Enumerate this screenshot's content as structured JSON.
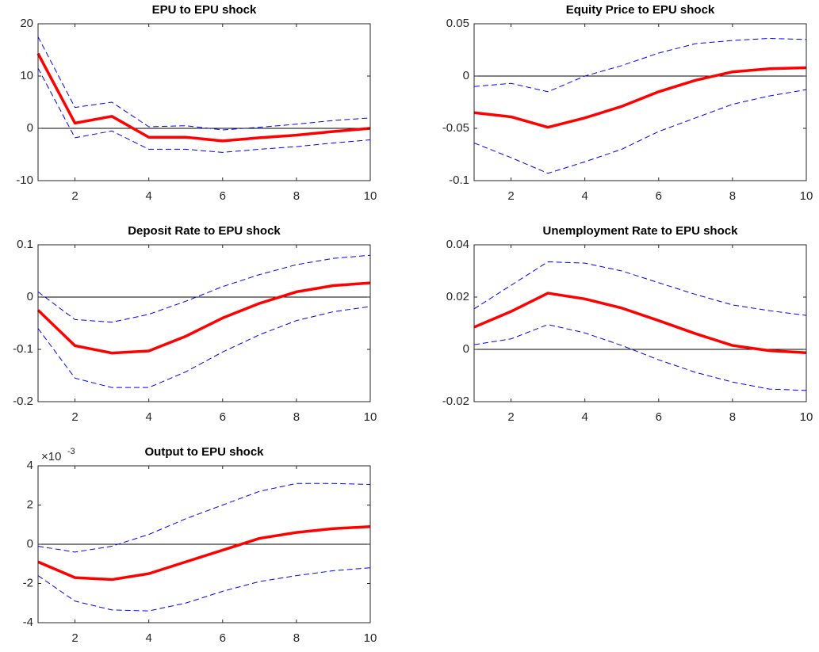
{
  "chart_data": [
    {
      "type": "line",
      "title": "EPU to EPU shock",
      "x": [
        1,
        2,
        3,
        4,
        5,
        6,
        7,
        8,
        9,
        10
      ],
      "xlim": [
        1,
        10
      ],
      "xticks": [
        2,
        4,
        6,
        8,
        10
      ],
      "ylim": [
        -10,
        20
      ],
      "yticks": [
        -10,
        0,
        10,
        20
      ],
      "zero_line": true,
      "series": [
        {
          "color": "#0000ff",
          "dashed": true,
          "values": [
            17.5,
            4,
            5,
            0.3,
            0.5,
            -0.3,
            0.2,
            0.8,
            1.5,
            2
          ]
        },
        {
          "color": "#0000ff",
          "dashed": true,
          "values": [
            11.5,
            -1.8,
            -0.5,
            -4,
            -4,
            -4.6,
            -4,
            -3.5,
            -2.8,
            -2.2
          ]
        },
        {
          "color": "#ff0000",
          "dashed": false,
          "values": [
            14.3,
            1,
            2.3,
            -1.7,
            -1.7,
            -2.4,
            -1.8,
            -1.3,
            -0.6,
            0
          ]
        }
      ]
    },
    {
      "type": "line",
      "title": "Equity Price to EPU shock",
      "x": [
        1,
        2,
        3,
        4,
        5,
        6,
        7,
        8,
        9,
        10
      ],
      "xlim": [
        1,
        10
      ],
      "xticks": [
        2,
        4,
        6,
        8,
        10
      ],
      "ylim": [
        -0.1,
        0.05
      ],
      "yticks": [
        -0.1,
        -0.05,
        0,
        0.05
      ],
      "zero_line": true,
      "series": [
        {
          "color": "#0000ff",
          "dashed": true,
          "values": [
            -0.01,
            -0.007,
            -0.015,
            0,
            0.01,
            0.022,
            0.031,
            0.034,
            0.036,
            0.035
          ]
        },
        {
          "color": "#0000ff",
          "dashed": true,
          "values": [
            -0.064,
            -0.078,
            -0.093,
            -0.082,
            -0.07,
            -0.053,
            -0.04,
            -0.027,
            -0.019,
            -0.013
          ]
        },
        {
          "color": "#ff0000",
          "dashed": false,
          "values": [
            -0.035,
            -0.039,
            -0.049,
            -0.04,
            -0.029,
            -0.015,
            -0.004,
            0.004,
            0.007,
            0.008
          ]
        }
      ]
    },
    {
      "type": "line",
      "title": "Deposit Rate to EPU shock",
      "x": [
        1,
        2,
        3,
        4,
        5,
        6,
        7,
        8,
        9,
        10
      ],
      "xlim": [
        1,
        10
      ],
      "xticks": [
        2,
        4,
        6,
        8,
        10
      ],
      "ylim": [
        -0.2,
        0.1
      ],
      "yticks": [
        -0.2,
        -0.1,
        0,
        0.1
      ],
      "zero_line": true,
      "series": [
        {
          "color": "#0000ff",
          "dashed": true,
          "values": [
            0.01,
            -0.043,
            -0.048,
            -0.033,
            -0.008,
            0.02,
            0.043,
            0.062,
            0.074,
            0.08
          ]
        },
        {
          "color": "#0000ff",
          "dashed": true,
          "values": [
            -0.06,
            -0.155,
            -0.173,
            -0.173,
            -0.143,
            -0.105,
            -0.072,
            -0.045,
            -0.028,
            -0.018
          ]
        },
        {
          "color": "#ff0000",
          "dashed": false,
          "values": [
            -0.025,
            -0.093,
            -0.107,
            -0.103,
            -0.075,
            -0.04,
            -0.012,
            0.01,
            0.022,
            0.027
          ]
        }
      ]
    },
    {
      "type": "line",
      "title": "Unemployment Rate  to EPU shock",
      "x": [
        1,
        2,
        3,
        4,
        5,
        6,
        7,
        8,
        9,
        10
      ],
      "xlim": [
        1,
        10
      ],
      "xticks": [
        2,
        4,
        6,
        8,
        10
      ],
      "ylim": [
        -0.02,
        0.04
      ],
      "yticks": [
        -0.02,
        0,
        0.02,
        0.04
      ],
      "zero_line": true,
      "series": [
        {
          "color": "#0000ff",
          "dashed": true,
          "values": [
            0.0155,
            0.0245,
            0.0335,
            0.033,
            0.03,
            0.0255,
            0.021,
            0.017,
            0.0148,
            0.013
          ]
        },
        {
          "color": "#0000ff",
          "dashed": true,
          "values": [
            0.0018,
            0.004,
            0.0095,
            0.0063,
            0.0015,
            -0.004,
            -0.0088,
            -0.0125,
            -0.0152,
            -0.0157
          ]
        },
        {
          "color": "#ff0000",
          "dashed": false,
          "values": [
            0.0085,
            0.0145,
            0.0215,
            0.0193,
            0.0158,
            0.011,
            0.006,
            0.0015,
            -0.0005,
            -0.0013
          ]
        }
      ]
    },
    {
      "type": "line",
      "title": "Output to EPU shock",
      "y_exponent_label": {
        "base": "×10",
        "exponent": "-3"
      },
      "x": [
        1,
        2,
        3,
        4,
        5,
        6,
        7,
        8,
        9,
        10
      ],
      "xlim": [
        1,
        10
      ],
      "xticks": [
        2,
        4,
        6,
        8,
        10
      ],
      "ylim": [
        -4,
        4
      ],
      "yticks": [
        -4,
        -2,
        0,
        2,
        4
      ],
      "zero_line": true,
      "series": [
        {
          "color": "#0000ff",
          "dashed": true,
          "values": [
            -0.1,
            -0.4,
            -0.1,
            0.5,
            1.3,
            2.0,
            2.7,
            3.1,
            3.1,
            3.05
          ]
        },
        {
          "color": "#0000ff",
          "dashed": true,
          "values": [
            -1.6,
            -2.9,
            -3.35,
            -3.4,
            -3.0,
            -2.4,
            -1.9,
            -1.6,
            -1.35,
            -1.2
          ]
        },
        {
          "color": "#ff0000",
          "dashed": false,
          "values": [
            -0.9,
            -1.7,
            -1.8,
            -1.5,
            -0.9,
            -0.3,
            0.3,
            0.6,
            0.8,
            0.9
          ]
        }
      ]
    }
  ]
}
